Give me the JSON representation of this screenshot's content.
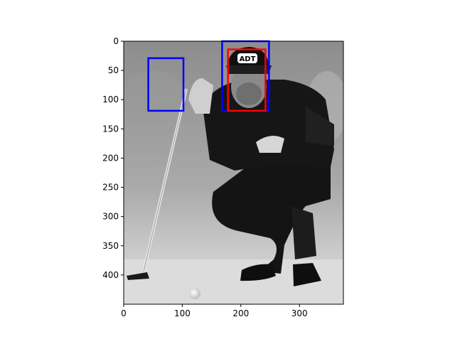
{
  "chart_data": {
    "type": "image-with-boxes",
    "image_description": "grayscale photo of a golfer crouching and lining up a putt, holding putter vertically",
    "axes": {
      "xlim": [
        0,
        375
      ],
      "ylim": [
        450,
        0
      ],
      "xticks": [
        0,
        100,
        200,
        300
      ],
      "yticks": [
        0,
        50,
        100,
        150,
        200,
        250,
        300,
        350,
        400
      ],
      "xtick_labels": [
        "0",
        "100",
        "200",
        "300"
      ],
      "ytick_labels": [
        "0",
        "50",
        "100",
        "150",
        "200",
        "250",
        "300",
        "350",
        "400"
      ]
    },
    "boxes": [
      {
        "label": "blue-box-left",
        "color": "#0000ff",
        "x0": 42,
        "y0": 29,
        "x1": 102,
        "y1": 119
      },
      {
        "label": "blue-box-head",
        "color": "#0000ff",
        "x0": 168,
        "y0": 0,
        "x1": 248,
        "y1": 119
      },
      {
        "label": "red-box-head",
        "color": "#ff0000",
        "x0": 178,
        "y0": 14,
        "x1": 242,
        "y1": 119
      }
    ],
    "cap_text": "ADT"
  }
}
